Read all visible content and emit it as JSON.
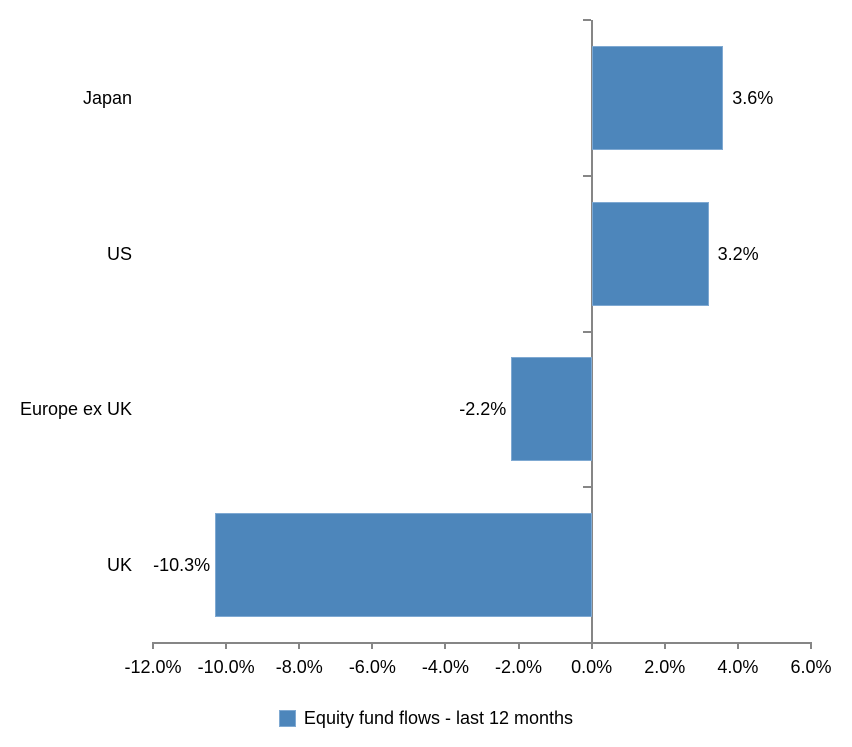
{
  "chart_data": {
    "type": "bar",
    "orientation": "horizontal",
    "title": "",
    "categories": [
      "Japan",
      "US",
      "Europe ex UK",
      "UK"
    ],
    "values": [
      3.6,
      3.2,
      -2.2,
      -10.3
    ],
    "data_labels": [
      "3.6%",
      "3.2%",
      "-2.2%",
      "-10.3%"
    ],
    "series_name": "Equity fund flows - last 12 months",
    "xlim": [
      -12,
      6
    ],
    "x_ticks": [
      -12,
      -10,
      -8,
      -6,
      -4,
      -2,
      0,
      2,
      4,
      6
    ],
    "x_tick_labels": [
      "-12.0%",
      "-10.0%",
      "-8.0%",
      "-6.0%",
      "-4.0%",
      "-2.0%",
      "0.0%",
      "2.0%",
      "4.0%",
      "6.0%"
    ],
    "grid": false,
    "legend_position": "bottom",
    "colors": {
      "bar_fill": "#4D86BB",
      "bar_border": "#7FA9D2",
      "axis": "#868686",
      "text": "#000000"
    }
  },
  "legend": {
    "label": "Equity fund flows - last 12 months",
    "marker_color": "#4D86BB",
    "marker_border_color": "#7FA9D2"
  }
}
